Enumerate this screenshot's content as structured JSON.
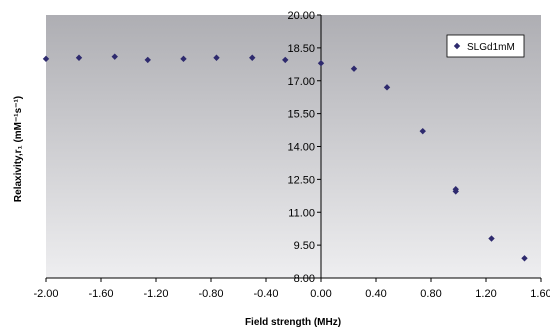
{
  "chart_data": {
    "type": "scatter",
    "xlabel": "Field strength (MHz)",
    "ylabel": "Relaxivity,r₁ (mM⁻¹s⁻¹)",
    "xlim": [
      -2.0,
      1.6
    ],
    "ylim": [
      8.0,
      20.0
    ],
    "x_ticks": [
      "-2.00",
      "-1.60",
      "-1.20",
      "-0.80",
      "-0.40",
      "0.00",
      "0.40",
      "0.80",
      "1.20",
      "1.60"
    ],
    "y_ticks": [
      "8.00",
      "9.50",
      "11.00",
      "12.50",
      "14.00",
      "15.50",
      "17.00",
      "18.50",
      "20.00"
    ],
    "grid": false,
    "legend_position": "top-right",
    "series": [
      {
        "name": "SLGd1mM",
        "color": "#2e2a6e",
        "marker": "diamond",
        "x": [
          -2.0,
          -1.76,
          -1.5,
          -1.26,
          -1.0,
          -0.76,
          -0.5,
          -0.26,
          0.0,
          0.24,
          0.48,
          0.74,
          0.98,
          0.98,
          1.24,
          1.48
        ],
        "y": [
          18.0,
          18.05,
          18.1,
          17.95,
          18.0,
          18.05,
          18.05,
          17.95,
          17.8,
          17.55,
          16.7,
          14.7,
          12.05,
          11.95,
          9.8,
          8.9
        ]
      }
    ]
  }
}
